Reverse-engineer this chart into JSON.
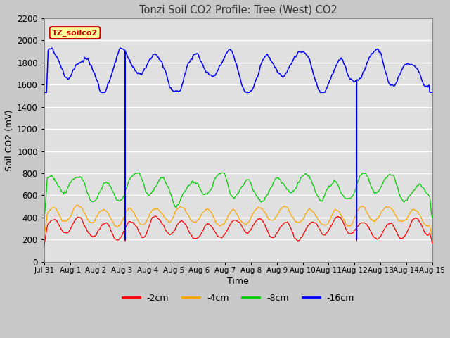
{
  "title": "Tonzi Soil CO2 Profile: Tree (West) CO2",
  "xlabel": "Time",
  "ylabel": "Soil CO2 (mV)",
  "ylim": [
    0,
    2200
  ],
  "xlim": [
    0,
    15
  ],
  "xtick_labels": [
    "Jul 31",
    "Aug 1",
    "Aug 2",
    "Aug 3",
    "Aug 4",
    "Aug 5",
    "Aug 6",
    "Aug 7",
    "Aug 8",
    "Aug 9",
    "Aug 10",
    "Aug 11",
    "Aug 12",
    "Aug 13",
    "Aug 14",
    "Aug 15"
  ],
  "legend_label": "TZ_soilco2",
  "legend_box_color": "#ffff99",
  "legend_box_edge": "#cc0000",
  "fig_bg": "#c8c8c8",
  "plot_bg": "#e0e0e0",
  "grid_color": "#ffffff",
  "series": {
    "cm2": {
      "label": "-2cm",
      "color": "#ff0000"
    },
    "cm4": {
      "label": "-4cm",
      "color": "#ffa500"
    },
    "cm8": {
      "label": "-8cm",
      "color": "#00cc00"
    },
    "cm16": {
      "label": "-16cm",
      "color": "#0000ff"
    }
  },
  "spike1_x": 3.13,
  "spike2_x": 12.05
}
